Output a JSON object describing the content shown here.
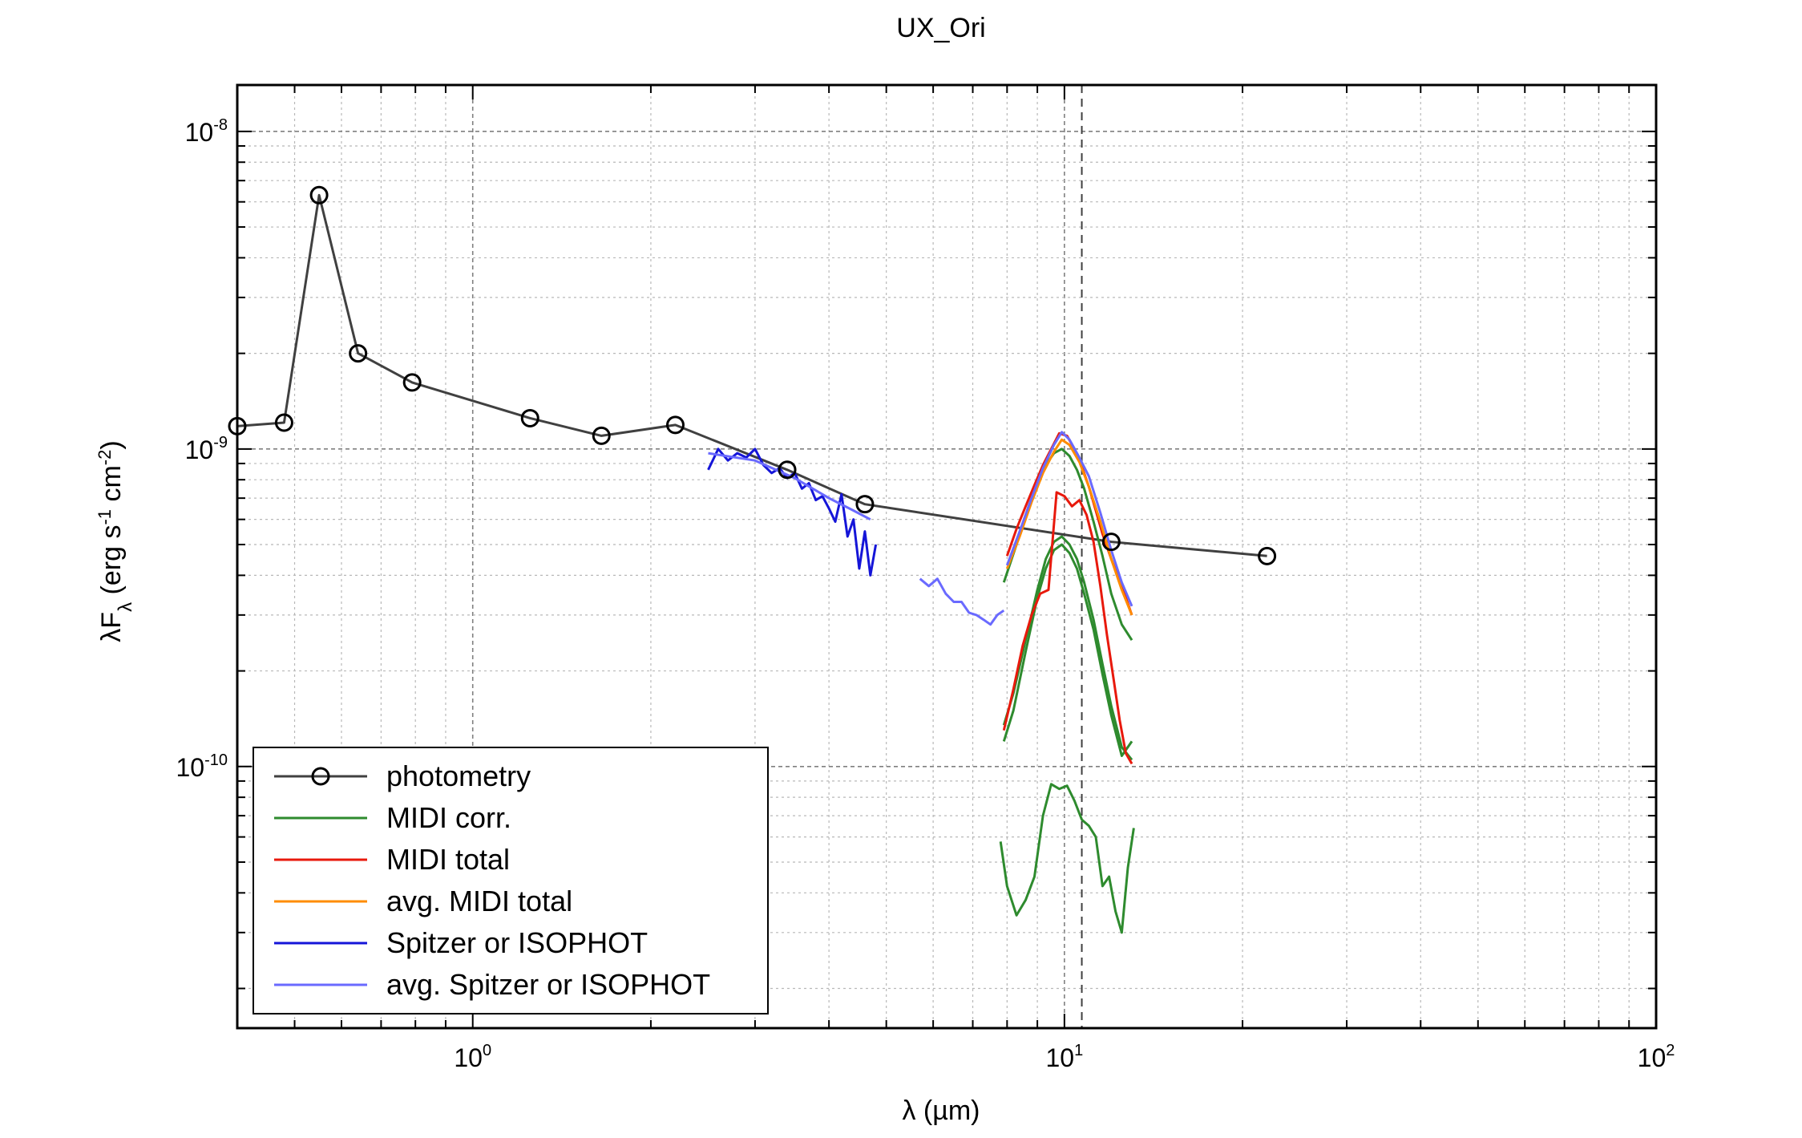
{
  "chart_data": {
    "type": "line",
    "title": "UX_Ori",
    "xlabel": "λ (µm)",
    "ylabel": "λF_λ (erg s^-1 cm^-2)",
    "x_scale": "log",
    "y_scale": "log",
    "xlim": [
      0.4,
      100
    ],
    "ylim": [
      1.5e-11,
      1.4e-08
    ],
    "grid": true,
    "legend_position": "bottom-left",
    "x_ticks": [
      {
        "base": "10",
        "exp": "0"
      },
      {
        "base": "10",
        "exp": "1"
      },
      {
        "base": "10",
        "exp": "2"
      }
    ],
    "y_ticks": [
      {
        "base": "10",
        "exp": "-10"
      },
      {
        "base": "10",
        "exp": "-9"
      },
      {
        "base": "10",
        "exp": "-8"
      }
    ],
    "vline_x": 10.7,
    "series": [
      {
        "name": "photometry",
        "color": "#404040",
        "marker": "circle",
        "x": [
          0.4,
          0.48,
          0.55,
          0.64,
          0.79,
          1.25,
          1.65,
          2.2,
          3.4,
          4.6,
          12,
          22
        ],
        "y": [
          1.18e-09,
          1.21e-09,
          6.3e-09,
          2e-09,
          1.62e-09,
          1.25e-09,
          1.1e-09,
          1.19e-09,
          8.6e-10,
          6.7e-10,
          5.1e-10,
          4.6e-10
        ]
      },
      {
        "name": "MIDI corr.",
        "color": "#2e8b2e",
        "curves": [
          {
            "x": [
              7.9,
              8.2,
              8.6,
              9.0,
              9.3,
              9.6,
              9.9,
              10.2,
              10.5,
              10.8,
              11.2,
              11.6,
              12.0,
              12.5,
              13.0
            ],
            "y": [
              1.35e-10,
              1.7e-10,
              2.5e-10,
              3.6e-10,
              4.5e-10,
              5.1e-10,
              5.3e-10,
              5e-10,
              4.5e-10,
              3.8e-10,
              2.9e-10,
              2.1e-10,
              1.55e-10,
              1.15e-10,
              1.05e-10
            ]
          },
          {
            "x": [
              7.9,
              8.2,
              8.6,
              9.0,
              9.3,
              9.6,
              9.9,
              10.2,
              10.5,
              10.8,
              11.2,
              11.6,
              12.0,
              12.5,
              13.0
            ],
            "y": [
              1.2e-10,
              1.5e-10,
              2.3e-10,
              3.4e-10,
              4.2e-10,
              4.8e-10,
              5e-10,
              4.7e-10,
              4.2e-10,
              3.5e-10,
              2.7e-10,
              1.95e-10,
              1.45e-10,
              1.08e-10,
              1.2e-10
            ]
          },
          {
            "x": [
              7.9,
              8.3,
              8.7,
              9.0,
              9.3,
              9.6,
              9.9,
              10.2,
              10.5,
              10.8,
              11.2,
              11.6,
              12.0,
              12.5,
              13.0
            ],
            "y": [
              3.8e-10,
              5e-10,
              6.6e-10,
              7.8e-10,
              8.9e-10,
              9.7e-10,
              1e-09,
              9.5e-10,
              8.6e-10,
              7.5e-10,
              5.9e-10,
              4.6e-10,
              3.5e-10,
              2.8e-10,
              2.5e-10
            ]
          },
          {
            "x": [
              7.8,
              8.0,
              8.3,
              8.6,
              8.9,
              9.2,
              9.5,
              9.8,
              10.1,
              10.4,
              10.7,
              11.0,
              11.3,
              11.6,
              11.9,
              12.2,
              12.5,
              12.8,
              13.1
            ],
            "y": [
              5.8e-11,
              4.2e-11,
              3.4e-11,
              3.8e-11,
              4.5e-11,
              7e-11,
              8.8e-11,
              8.5e-11,
              8.7e-11,
              7.8e-11,
              6.8e-11,
              6.5e-11,
              6e-11,
              4.2e-11,
              4.5e-11,
              3.5e-11,
              3e-11,
              4.8e-11,
              6.4e-11
            ]
          }
        ]
      },
      {
        "name": "MIDI total",
        "color": "#e8190c",
        "curves": [
          {
            "x": [
              8.0,
              8.3,
              8.6,
              8.9,
              9.2,
              9.5,
              9.8,
              10.1,
              10.4,
              10.7,
              11.0,
              11.3,
              11.6,
              12.0,
              12.5,
              13.0
            ],
            "y": [
              4.6e-10,
              5.6e-10,
              6.6e-10,
              7.7e-10,
              8.9e-10,
              1e-09,
              1.12e-09,
              1.1e-09,
              1e-09,
              8.8e-10,
              7.6e-10,
              6.4e-10,
              5.4e-10,
              4.5e-10,
              3.7e-10,
              3e-10
            ]
          },
          {
            "x": [
              7.9,
              8.2,
              8.5,
              8.8,
              9.1,
              9.4,
              9.7,
              10.0,
              10.3,
              10.6,
              10.9,
              11.2,
              11.5,
              11.8,
              12.1,
              12.4,
              12.7,
              13.0
            ],
            "y": [
              1.3e-10,
              1.75e-10,
              2.4e-10,
              3e-10,
              3.5e-10,
              3.6e-10,
              7.3e-10,
              7.1e-10,
              6.6e-10,
              6.9e-10,
              6.2e-10,
              5.1e-10,
              3.7e-10,
              2.6e-10,
              1.9e-10,
              1.4e-10,
              1.1e-10,
              1.02e-10
            ]
          }
        ]
      },
      {
        "name": "avg. MIDI total",
        "color": "#ff8c00",
        "curves": [
          {
            "x": [
              8.0,
              8.4,
              8.8,
              9.2,
              9.6,
              9.9,
              10.2,
              10.6,
              11.0,
              11.5,
              12.0,
              12.5,
              13.0
            ],
            "y": [
              4.2e-10,
              5.3e-10,
              6.8e-10,
              8.4e-10,
              9.8e-10,
              1.07e-09,
              1.03e-09,
              9.1e-10,
              7.6e-10,
              5.9e-10,
              4.5e-10,
              3.6e-10,
              3e-10
            ]
          }
        ]
      },
      {
        "name": "Spitzer or ISOPHOT",
        "color": "#1515d8",
        "curves": [
          {
            "x": [
              2.5,
              2.6,
              2.7,
              2.8,
              2.9,
              3.0,
              3.1,
              3.2,
              3.3,
              3.4,
              3.5,
              3.6,
              3.7,
              3.8,
              3.9,
              4.0,
              4.1,
              4.2,
              4.3,
              4.4,
              4.5,
              4.6,
              4.7,
              4.8
            ],
            "y": [
              8.6e-10,
              1e-09,
              9.2e-10,
              9.7e-10,
              9.4e-10,
              1e-09,
              8.9e-10,
              8.4e-10,
              8.7e-10,
              8.1e-10,
              8.4e-10,
              7.5e-10,
              7.8e-10,
              6.9e-10,
              7.1e-10,
              6.5e-10,
              5.9e-10,
              7.2e-10,
              5.3e-10,
              6e-10,
              4.2e-10,
              5.5e-10,
              4e-10,
              5e-10
            ]
          }
        ]
      },
      {
        "name": "avg. Spitzer or ISOPHOT",
        "color": "#6a6aff",
        "curves": [
          {
            "x": [
              2.5,
              3.0,
              3.5,
              4.0,
              4.4,
              4.7
            ],
            "y": [
              9.7e-10,
              9.2e-10,
              8.1e-10,
              7e-10,
              6.4e-10,
              6e-10
            ]
          },
          {
            "x": [
              5.7,
              5.9,
              6.1,
              6.3,
              6.5,
              6.7,
              6.9,
              7.1,
              7.3,
              7.5,
              7.7,
              7.9
            ],
            "y": [
              3.9e-10,
              3.7e-10,
              3.9e-10,
              3.5e-10,
              3.3e-10,
              3.3e-10,
              3.05e-10,
              3e-10,
              2.9e-10,
              2.8e-10,
              3e-10,
              3.1e-10
            ]
          },
          {
            "x": [
              8.0,
              8.4,
              8.8,
              9.2,
              9.6,
              9.9,
              10.2,
              10.6,
              11.0,
              11.5,
              12.0,
              12.5,
              13.0
            ],
            "y": [
              4.3e-10,
              5.5e-10,
              7e-10,
              8.7e-10,
              1.03e-09,
              1.13e-09,
              1.07e-09,
              9.4e-10,
              8.2e-10,
              6.3e-10,
              4.8e-10,
              3.8e-10,
              3.2e-10
            ]
          }
        ]
      }
    ]
  }
}
